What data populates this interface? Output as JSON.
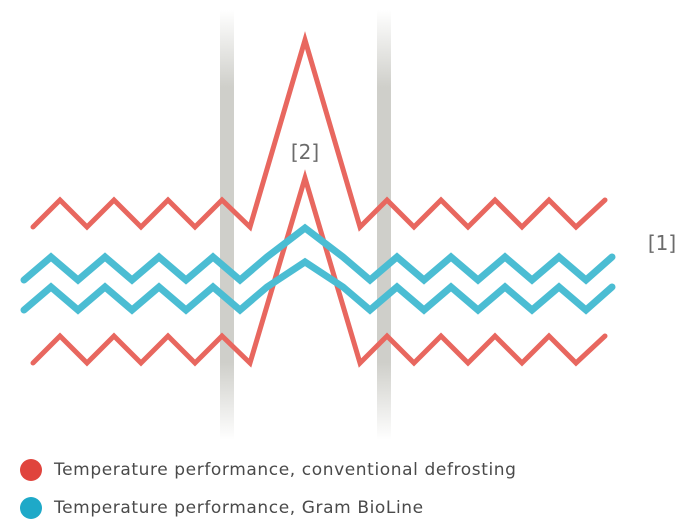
{
  "annotations": {
    "marker_1": "[1]",
    "marker_2": "[2]"
  },
  "series": [
    {
      "name": "Temperature performance, conventional defrosting",
      "color": "#e8675f",
      "dot_color": "#e0443d"
    },
    {
      "name": "Temperature performance, Gram BioLine",
      "color": "#4bbdd3",
      "dot_color": "#1ea9c8"
    }
  ],
  "colors": {
    "defrost_band": "#cfcfca",
    "text": "#4a4a4a"
  }
}
